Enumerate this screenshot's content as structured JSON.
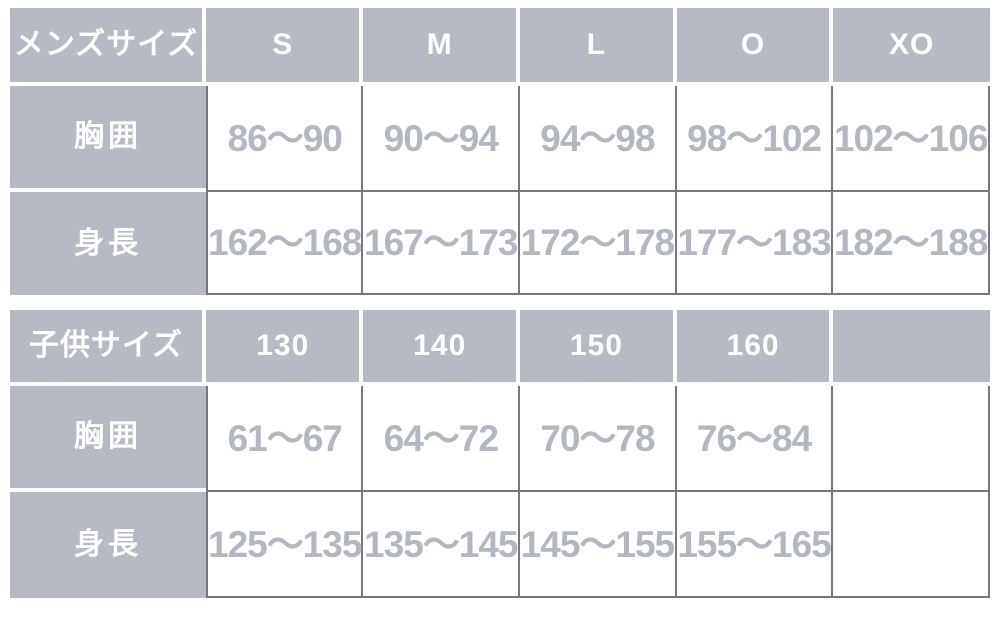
{
  "colors": {
    "header_background": "#b6bac3",
    "header_text": "#ffffff",
    "value_text": "#b2b7c0",
    "grid_border": "#787878",
    "page_background": "#ffffff"
  },
  "chart_data": [
    {
      "type": "table",
      "title": "メンズサイズ",
      "columns": [
        "メンズサイズ",
        "S",
        "M",
        "L",
        "O",
        "XO"
      ],
      "rows": [
        [
          "胸囲",
          "86〜90",
          "90〜94",
          "94〜98",
          "98〜102",
          "102〜106"
        ],
        [
          "身長",
          "162〜168",
          "167〜173",
          "172〜178",
          "177〜183",
          "182〜188"
        ]
      ]
    },
    {
      "type": "table",
      "title": "子供サイズ",
      "columns": [
        "子供サイズ",
        "130",
        "140",
        "150",
        "160",
        ""
      ],
      "rows": [
        [
          "胸囲",
          "61〜67",
          "64〜72",
          "70〜78",
          "76〜84",
          ""
        ],
        [
          "身長",
          "125〜135",
          "135〜145",
          "145〜155",
          "155〜165",
          ""
        ]
      ]
    }
  ]
}
